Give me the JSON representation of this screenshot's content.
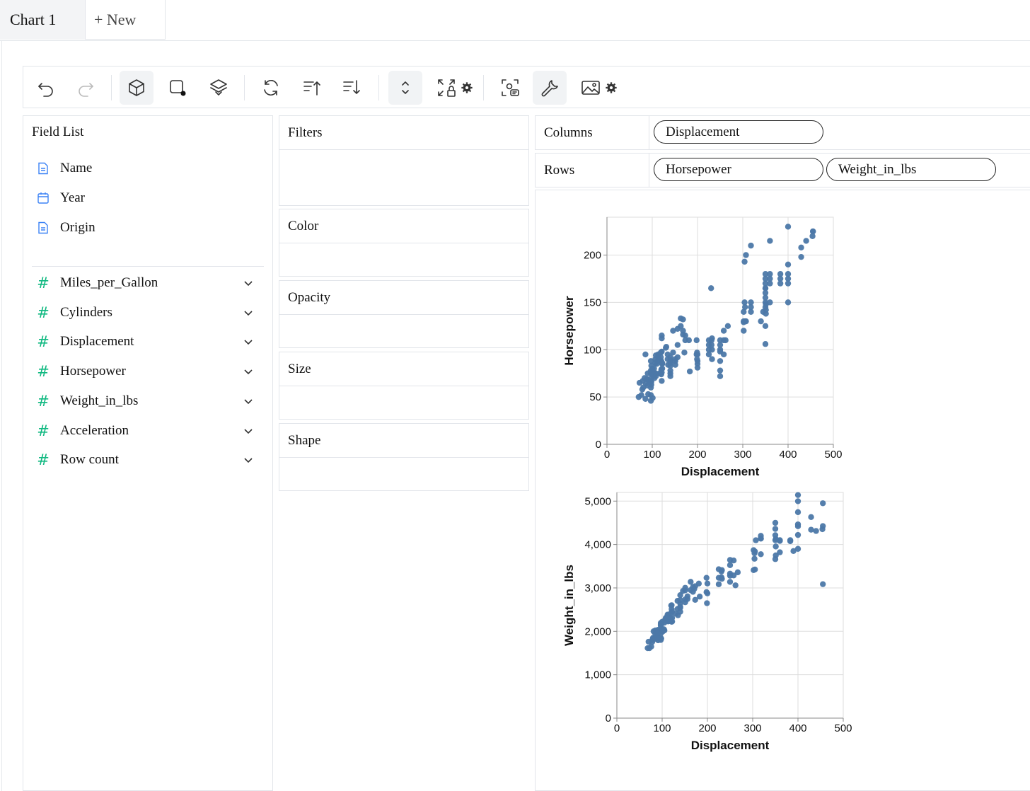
{
  "tabs": [
    {
      "label": "Chart 1",
      "active": true
    },
    {
      "label": "+ New",
      "active": false
    }
  ],
  "toolbar": {
    "buttons": [
      {
        "name": "undo-icon"
      },
      {
        "name": "redo-icon",
        "disabled": true
      },
      {
        "name": "cube-icon",
        "active": true
      },
      {
        "name": "square-dot-icon"
      },
      {
        "name": "layers-icon"
      },
      {
        "name": "refresh-icon"
      },
      {
        "name": "sort-ascending-icon"
      },
      {
        "name": "sort-descending-icon"
      },
      {
        "name": "chevron-up-down-icon",
        "active": true
      },
      {
        "name": "expand-lock-icon"
      },
      {
        "name": "screenshot-comment-icon"
      },
      {
        "name": "wrench-icon",
        "active": true
      },
      {
        "name": "image-icon"
      }
    ]
  },
  "field_list": {
    "title": "Field List",
    "dimensions": [
      {
        "label": "Name",
        "icon": "document-icon"
      },
      {
        "label": "Year",
        "icon": "calendar-icon"
      },
      {
        "label": "Origin",
        "icon": "document-icon"
      }
    ],
    "measures": [
      {
        "label": "Miles_per_Gallon"
      },
      {
        "label": "Cylinders"
      },
      {
        "label": "Displacement"
      },
      {
        "label": "Horsepower"
      },
      {
        "label": "Weight_in_lbs"
      },
      {
        "label": "Acceleration"
      },
      {
        "label": "Row count"
      }
    ],
    "measure_symbol": "#"
  },
  "encodings": {
    "filters": "Filters",
    "color": "Color",
    "opacity": "Opacity",
    "size": "Size",
    "shape": "Shape"
  },
  "shelves": {
    "columns_label": "Columns",
    "columns": [
      "Displacement"
    ],
    "rows_label": "Rows",
    "rows": [
      "Horsepower",
      "Weight_in_lbs"
    ]
  },
  "colors": {
    "point": "#4c78a8",
    "accent_hash": "#10b981",
    "doc_icon": "#3b82f6"
  },
  "chart_data": [
    {
      "type": "scatter",
      "xlabel": "Displacement",
      "ylabel": "Horsepower",
      "xlim": [
        0,
        500
      ],
      "ylim": [
        0,
        240
      ],
      "xticks": [
        "0",
        "100",
        "200",
        "300",
        "400",
        "500"
      ],
      "yticks": [
        "0",
        "50",
        "100",
        "150",
        "200"
      ],
      "grid": true,
      "points": [
        [
          70,
          50
        ],
        [
          72,
          65
        ],
        [
          76,
          52
        ],
        [
          78,
          58
        ],
        [
          79,
          67
        ],
        [
          80,
          60
        ],
        [
          83,
          70
        ],
        [
          85,
          48
        ],
        [
          85,
          95
        ],
        [
          86,
          64
        ],
        [
          88,
          69
        ],
        [
          89,
          62
        ],
        [
          90,
          75
        ],
        [
          91,
          53
        ],
        [
          91,
          68
        ],
        [
          97,
          46
        ],
        [
          97,
          52
        ],
        [
          97,
          60
        ],
        [
          97,
          67
        ],
        [
          97,
          75
        ],
        [
          97,
          78
        ],
        [
          97,
          88
        ],
        [
          98,
          63
        ],
        [
          98,
          66
        ],
        [
          98,
          70
        ],
        [
          98,
          83
        ],
        [
          100,
          80
        ],
        [
          101,
          49
        ],
        [
          101,
          73
        ],
        [
          104,
          80
        ],
        [
          105,
          70
        ],
        [
          105,
          75
        ],
        [
          107,
          86
        ],
        [
          107,
          90
        ],
        [
          108,
          72
        ],
        [
          108,
          75
        ],
        [
          108,
          94
        ],
        [
          110,
          85
        ],
        [
          112,
          88
        ],
        [
          113,
          95
        ],
        [
          114,
          91
        ],
        [
          116,
          75
        ],
        [
          119,
          92
        ],
        [
          119,
          97
        ],
        [
          120,
          74
        ],
        [
          120,
          79
        ],
        [
          120,
          87
        ],
        [
          120,
          88
        ],
        [
          121,
          67
        ],
        [
          121,
          76
        ],
        [
          121,
          98
        ],
        [
          121,
          112
        ],
        [
          121,
          115
        ],
        [
          122,
          80
        ],
        [
          122,
          85
        ],
        [
          122,
          86
        ],
        [
          130,
          102
        ],
        [
          131,
          103
        ],
        [
          134,
          90
        ],
        [
          134,
          95
        ],
        [
          135,
          84
        ],
        [
          140,
          72
        ],
        [
          140,
          75
        ],
        [
          140,
          78
        ],
        [
          140,
          83
        ],
        [
          140,
          86
        ],
        [
          140,
          88
        ],
        [
          140,
          89
        ],
        [
          140,
          92
        ],
        [
          146,
          97
        ],
        [
          146,
          120
        ],
        [
          151,
          84
        ],
        [
          151,
          88
        ],
        [
          151,
          90
        ],
        [
          156,
          92
        ],
        [
          156,
          105
        ],
        [
          156,
          122
        ],
        [
          163,
          125
        ],
        [
          163,
          133
        ],
        [
          168,
          116
        ],
        [
          168,
          120
        ],
        [
          168,
          132
        ],
        [
          171,
          97
        ],
        [
          173,
          110
        ],
        [
          173,
          115
        ],
        [
          181,
          110
        ],
        [
          183,
          77
        ],
        [
          198,
          95
        ],
        [
          198,
          110
        ],
        [
          199,
          90
        ],
        [
          199,
          97
        ],
        [
          200,
          81
        ],
        [
          200,
          85
        ],
        [
          200,
          88
        ],
        [
          200,
          95
        ],
        [
          225,
          95
        ],
        [
          225,
          100
        ],
        [
          225,
          105
        ],
        [
          225,
          110
        ],
        [
          231,
          105
        ],
        [
          231,
          110
        ],
        [
          232,
          90
        ],
        [
          232,
          100
        ],
        [
          232,
          112
        ],
        [
          250,
          72
        ],
        [
          250,
          78
        ],
        [
          250,
          88
        ],
        [
          250,
          98
        ],
        [
          250,
          100
        ],
        [
          250,
          105
        ],
        [
          250,
          110
        ],
        [
          258,
          95
        ],
        [
          258,
          110
        ],
        [
          258,
          120
        ],
        [
          262,
          110
        ],
        [
          267,
          125
        ],
        [
          302,
          120
        ],
        [
          302,
          129
        ],
        [
          302,
          130
        ],
        [
          302,
          140
        ],
        [
          304,
          150
        ],
        [
          305,
          130
        ],
        [
          305,
          145
        ],
        [
          307,
          130
        ],
        [
          318,
          140
        ],
        [
          318,
          145
        ],
        [
          318,
          150
        ],
        [
          350,
          145
        ],
        [
          350,
          150
        ],
        [
          350,
          155
        ],
        [
          350,
          160
        ],
        [
          350,
          165
        ],
        [
          350,
          170
        ],
        [
          350,
          175
        ],
        [
          350,
          180
        ],
        [
          350,
          165
        ],
        [
          351,
          138
        ],
        [
          351,
          142
        ],
        [
          351,
          148
        ],
        [
          360,
          150
        ],
        [
          360,
          170
        ],
        [
          360,
          175
        ],
        [
          360,
          180
        ],
        [
          383,
          170
        ],
        [
          383,
          175
        ],
        [
          383,
          180
        ],
        [
          400,
          150
        ],
        [
          400,
          170
        ],
        [
          400,
          175
        ],
        [
          400,
          180
        ],
        [
          400,
          190
        ],
        [
          400,
          230
        ],
        [
          429,
          198
        ],
        [
          429,
          208
        ],
        [
          440,
          215
        ],
        [
          454,
          220
        ],
        [
          455,
          225
        ],
        [
          455,
          225
        ],
        [
          307,
          200
        ],
        [
          304,
          193
        ],
        [
          318,
          210
        ],
        [
          360,
          215
        ],
        [
          350,
          125
        ],
        [
          340,
          130
        ],
        [
          345,
          140
        ],
        [
          350,
          106
        ],
        [
          230,
          165
        ]
      ]
    },
    {
      "type": "scatter",
      "xlabel": "Displacement",
      "ylabel": "Weight_in_lbs",
      "xlim": [
        0,
        500
      ],
      "ylim": [
        0,
        5200
      ],
      "xticks": [
        "0",
        "100",
        "200",
        "300",
        "400",
        "500"
      ],
      "yticks": [
        "0",
        "1,000",
        "2,000",
        "3,000",
        "4,000",
        "5,000"
      ],
      "grid": true,
      "points": [
        [
          68,
          1613
        ],
        [
          70,
          1760
        ],
        [
          72,
          1613
        ],
        [
          76,
          1649
        ],
        [
          78,
          1755
        ],
        [
          79,
          1800
        ],
        [
          79,
          1825
        ],
        [
          80,
          1850
        ],
        [
          81,
          2000
        ],
        [
          85,
          1835
        ],
        [
          85,
          1940
        ],
        [
          85,
          2020
        ],
        [
          86,
          1825
        ],
        [
          89,
          1875
        ],
        [
          89,
          1925
        ],
        [
          90,
          1937
        ],
        [
          90,
          2000
        ],
        [
          91,
          1795
        ],
        [
          91,
          1965
        ],
        [
          91,
          2035
        ],
        [
          97,
          1800
        ],
        [
          97,
          1834
        ],
        [
          97,
          1950
        ],
        [
          97,
          2130
        ],
        [
          97,
          2155
        ],
        [
          97,
          2190
        ],
        [
          98,
          1836
        ],
        [
          98,
          2045
        ],
        [
          98,
          2065
        ],
        [
          98,
          2164
        ],
        [
          100,
          2220
        ],
        [
          101,
          1995
        ],
        [
          104,
          2046
        ],
        [
          105,
          2020
        ],
        [
          105,
          2200
        ],
        [
          107,
          2279
        ],
        [
          108,
          2245
        ],
        [
          108,
          2310
        ],
        [
          110,
          2320
        ],
        [
          112,
          2385
        ],
        [
          113,
          2228
        ],
        [
          113,
          2372
        ],
        [
          114,
          2234
        ],
        [
          116,
          2272
        ],
        [
          119,
          2300
        ],
        [
          120,
          2430
        ],
        [
          120,
          2595
        ],
        [
          121,
          2220
        ],
        [
          121,
          2511
        ],
        [
          121,
          2600
        ],
        [
          122,
          2226
        ],
        [
          122,
          2310
        ],
        [
          122,
          2451
        ],
        [
          130,
          2405
        ],
        [
          134,
          2515
        ],
        [
          134,
          2702
        ],
        [
          135,
          2370
        ],
        [
          140,
          2451
        ],
        [
          140,
          2542
        ],
        [
          140,
          2565
        ],
        [
          140,
          2639
        ],
        [
          140,
          2720
        ],
        [
          140,
          2833
        ],
        [
          146,
          2930
        ],
        [
          151,
          2670
        ],
        [
          151,
          2735
        ],
        [
          151,
          2945
        ],
        [
          151,
          3003
        ],
        [
          156,
          2745
        ],
        [
          156,
          2807
        ],
        [
          163,
          2950
        ],
        [
          163,
          3140
        ],
        [
          168,
          2910
        ],
        [
          168,
          3020
        ],
        [
          171,
          2979
        ],
        [
          173,
          2725
        ],
        [
          173,
          3039
        ],
        [
          181,
          3100
        ],
        [
          183,
          2800
        ],
        [
          198,
          2904
        ],
        [
          198,
          3233
        ],
        [
          199,
          2648
        ],
        [
          200,
          2875
        ],
        [
          200,
          3102
        ],
        [
          225,
          3085
        ],
        [
          225,
          3233
        ],
        [
          225,
          3430
        ],
        [
          231,
          3245
        ],
        [
          231,
          3380
        ],
        [
          232,
          3210
        ],
        [
          232,
          3410
        ],
        [
          250,
          3139
        ],
        [
          250,
          3282
        ],
        [
          250,
          3329
        ],
        [
          250,
          3525
        ],
        [
          250,
          3645
        ],
        [
          258,
          3288
        ],
        [
          258,
          3632
        ],
        [
          262,
          3060
        ],
        [
          267,
          3360
        ],
        [
          302,
          3410
        ],
        [
          302,
          3870
        ],
        [
          304,
          3672
        ],
        [
          305,
          3425
        ],
        [
          305,
          3840
        ],
        [
          307,
          4098
        ],
        [
          318,
          3777
        ],
        [
          318,
          4135
        ],
        [
          318,
          4140
        ],
        [
          350,
          3664
        ],
        [
          350,
          4100
        ],
        [
          350,
          4215
        ],
        [
          350,
          4360
        ],
        [
          350,
          4499
        ],
        [
          351,
          3955
        ],
        [
          351,
          4129
        ],
        [
          360,
          3821
        ],
        [
          360,
          4082
        ],
        [
          360,
          4100
        ],
        [
          383,
          4077
        ],
        [
          383,
          4100
        ],
        [
          400,
          3900
        ],
        [
          400,
          4220
        ],
        [
          400,
          4422
        ],
        [
          400,
          4464
        ],
        [
          400,
          4746
        ],
        [
          400,
          4997
        ],
        [
          400,
          5140
        ],
        [
          429,
          4341
        ],
        [
          429,
          4633
        ],
        [
          440,
          4312
        ],
        [
          454,
          4354
        ],
        [
          455,
          3086
        ],
        [
          455,
          4425
        ],
        [
          455,
          4951
        ],
        [
          304,
          3800
        ],
        [
          318,
          4200
        ],
        [
          351,
          3750
        ],
        [
          390,
          3850
        ]
      ]
    }
  ]
}
